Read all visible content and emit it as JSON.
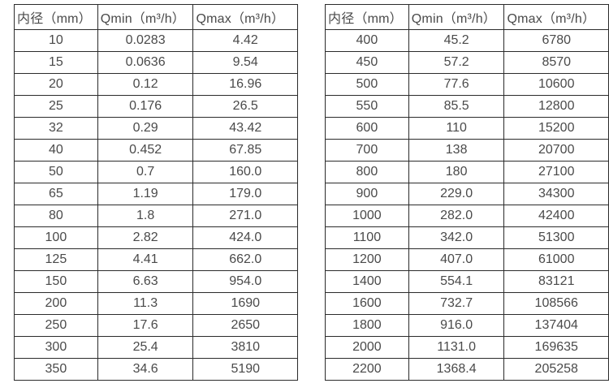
{
  "page": {
    "background_color": "#ffffff",
    "border_color": "#2b2b2b",
    "text_color": "#4a4a4a"
  },
  "tables": [
    {
      "name": "small-diameters",
      "headers": [
        "内径（mm）",
        "Qmin（m³/h）",
        "Qmax（m³/h）"
      ],
      "rows": [
        [
          "10",
          "0.0283",
          "4.42"
        ],
        [
          "15",
          "0.0636",
          "9.54"
        ],
        [
          "20",
          "0.12",
          "16.96"
        ],
        [
          "25",
          "0.176",
          "26.5"
        ],
        [
          "32",
          "0.29",
          "43.42"
        ],
        [
          "40",
          "0.452",
          "67.85"
        ],
        [
          "50",
          "0.7",
          "160.0"
        ],
        [
          "65",
          "1.19",
          "179.0"
        ],
        [
          "80",
          "1.8",
          "271.0"
        ],
        [
          "100",
          "2.82",
          "424.0"
        ],
        [
          "125",
          "4.41",
          "662.0"
        ],
        [
          "150",
          "6.63",
          "954.0"
        ],
        [
          "200",
          "11.3",
          "1690"
        ],
        [
          "250",
          "17.6",
          "2650"
        ],
        [
          "300",
          "25.4",
          "3810"
        ],
        [
          "350",
          "34.6",
          "5190"
        ]
      ]
    },
    {
      "name": "large-diameters",
      "headers": [
        "内径（mm）",
        "Qmin（m³/h）",
        "Qmax（m³/h）"
      ],
      "rows": [
        [
          "400",
          "45.2",
          "6780"
        ],
        [
          "450",
          "57.2",
          "8570"
        ],
        [
          "500",
          "77.6",
          "10600"
        ],
        [
          "550",
          "85.5",
          "12800"
        ],
        [
          "600",
          "110",
          "15200"
        ],
        [
          "700",
          "138",
          "20700"
        ],
        [
          "800",
          "180",
          "27100"
        ],
        [
          "900",
          "229.0",
          "34300"
        ],
        [
          "1000",
          "282.0",
          "42400"
        ],
        [
          "1100",
          "342.0",
          "51300"
        ],
        [
          "1200",
          "407.0",
          "61000"
        ],
        [
          "1400",
          "554.1",
          "83121"
        ],
        [
          "1600",
          "732.7",
          "108566"
        ],
        [
          "1800",
          "916.0",
          "137404"
        ],
        [
          "2000",
          "1131.0",
          "169635"
        ],
        [
          "2200",
          "1368.4",
          "205258"
        ]
      ]
    }
  ]
}
